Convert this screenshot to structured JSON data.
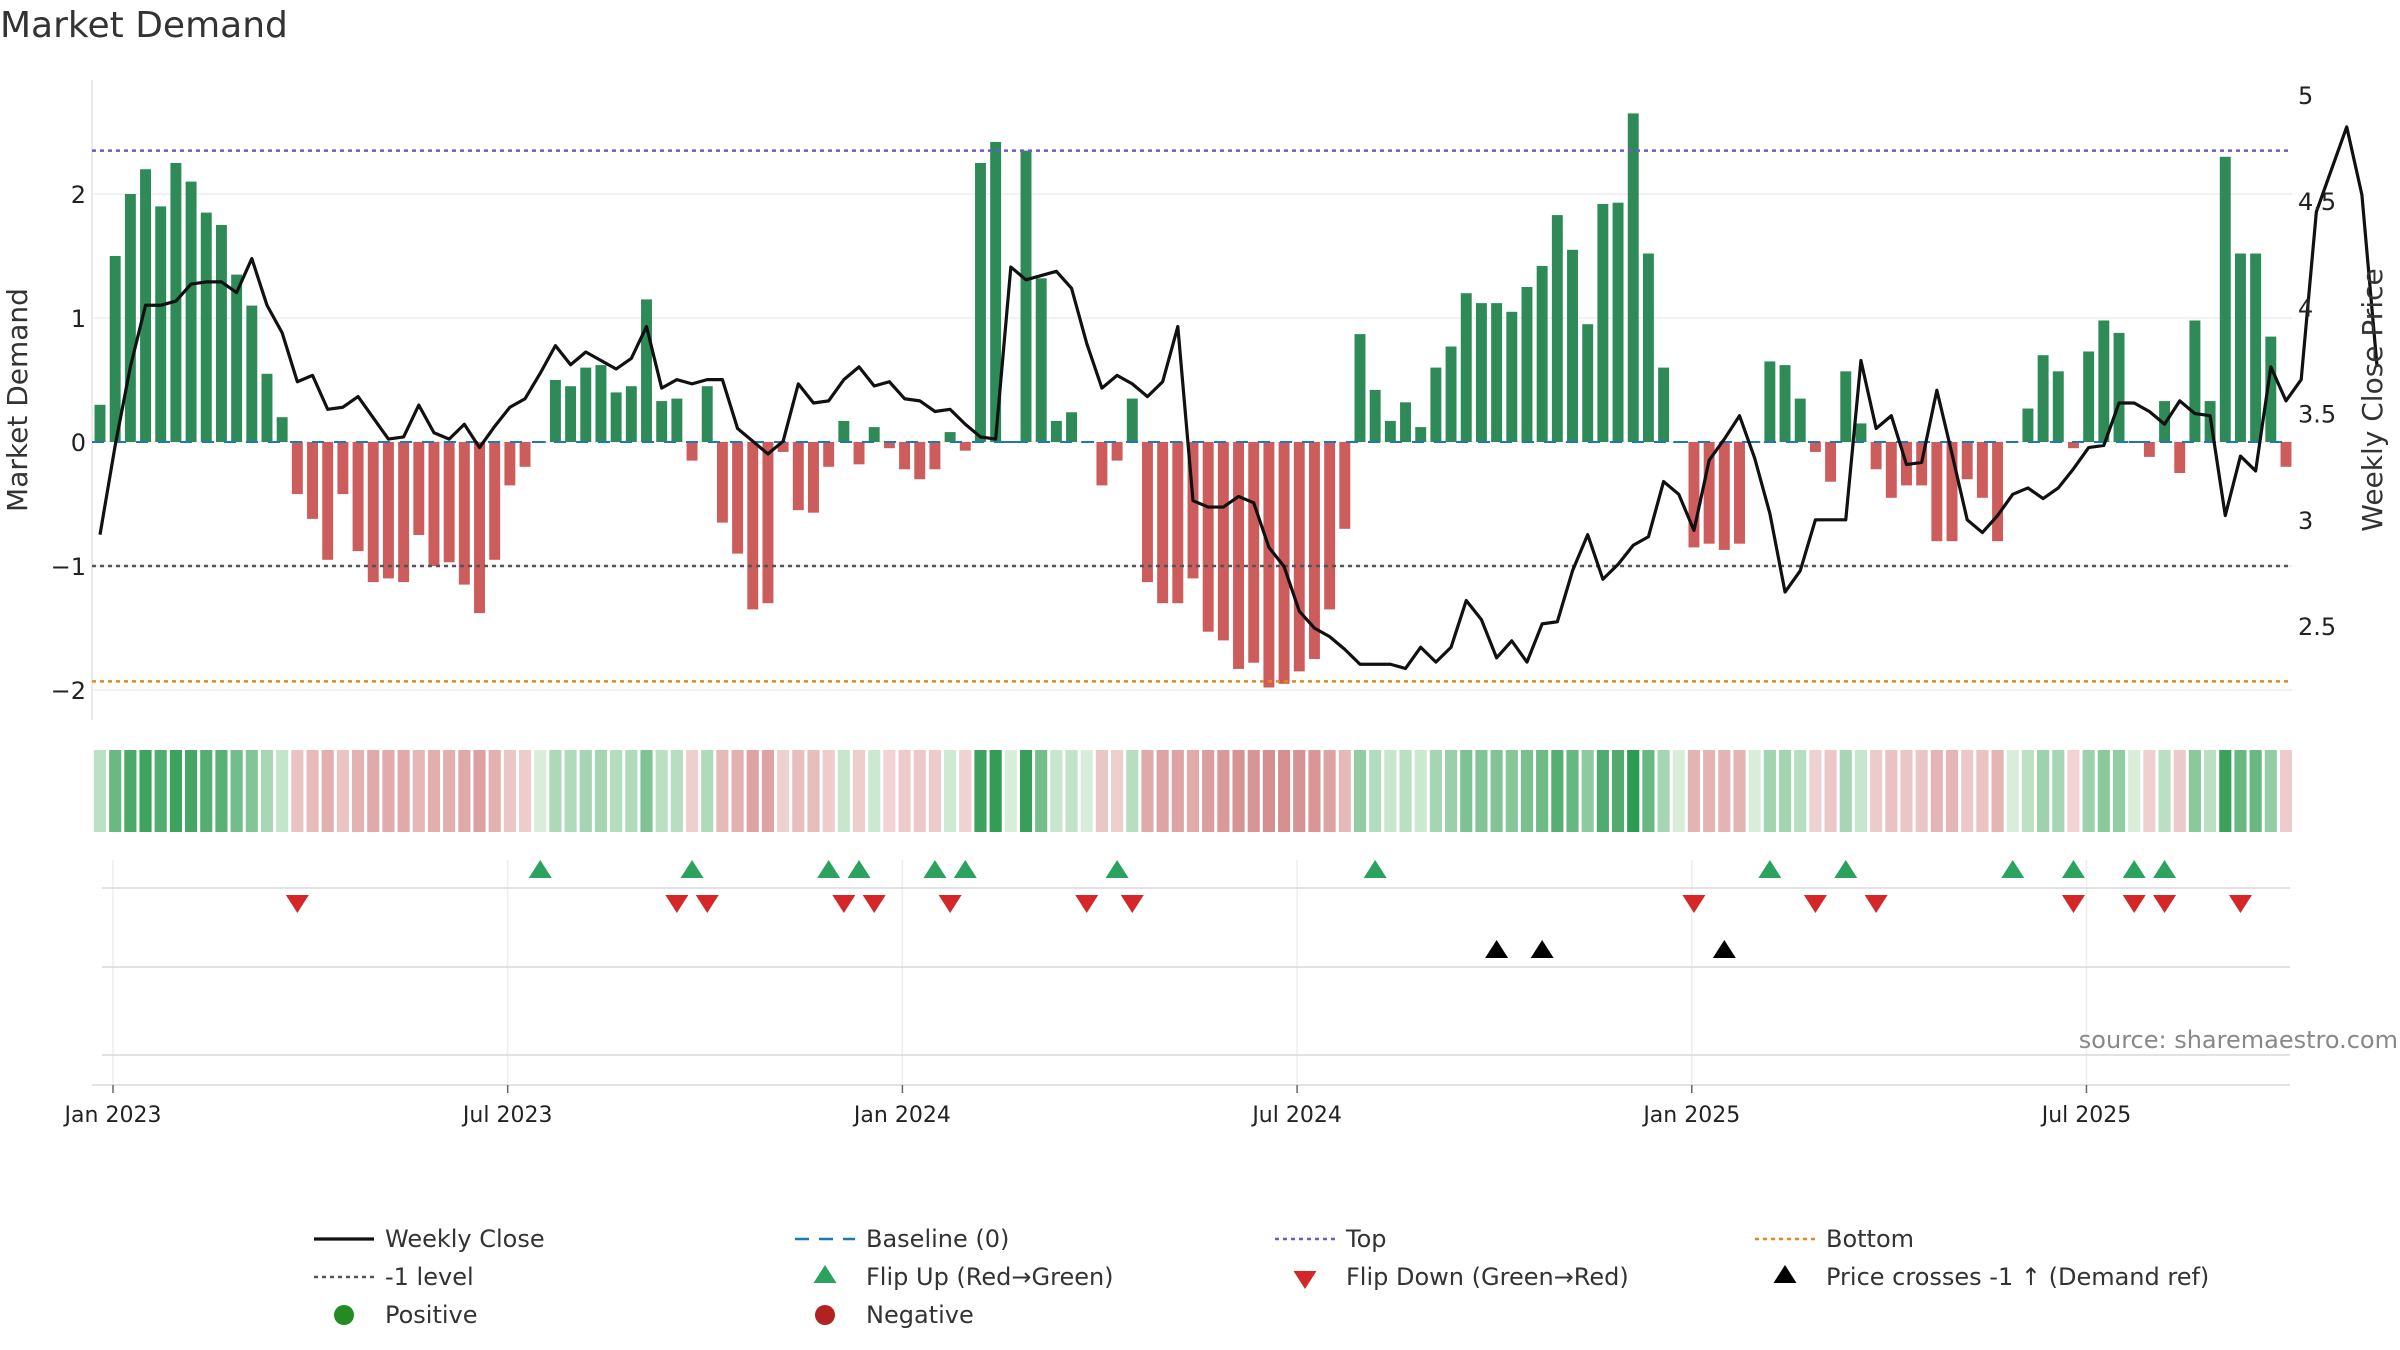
{
  "title": "Market Demand",
  "source": "source: sharemaestro.com",
  "colors": {
    "positive": "#2e8b57",
    "negative": "#cd5c5c",
    "price": "#111111",
    "baseline": "#1f77b4",
    "top": "#6a5acd",
    "minus1": "#555555",
    "bottom": "#e08a1e",
    "flip_up": "#2ca25f",
    "flip_down": "#d62728",
    "cross": "#000000",
    "legend_positive": "#228b22",
    "legend_negative": "#b22222"
  },
  "chart_data": {
    "type": "bar",
    "ylabel": "Market Demand",
    "y2label": "Weekly Close Price",
    "ylim": [
      -2.2,
      2.9
    ],
    "y2lim": [
      2.15,
      5.1
    ],
    "yticks": [
      "−2",
      "−1",
      "0",
      "1",
      "2"
    ],
    "y2ticks": [
      "2.5",
      "3",
      "3.5",
      "4",
      "4.5",
      "5"
    ],
    "xticks": [
      "Jan 2023",
      "Jul 2023",
      "Jan 2024",
      "Jul 2024",
      "Jan 2025",
      "Jul 2025"
    ],
    "reference_lines": {
      "top": 2.35,
      "minus1": -1,
      "bottom": -1.93,
      "baseline": 0
    },
    "demand_series": {
      "name": "Market Demand",
      "values": [
        0.3,
        1.5,
        2.0,
        2.2,
        1.9,
        2.25,
        2.1,
        1.85,
        1.75,
        1.35,
        1.1,
        0.55,
        0.2,
        -0.42,
        -0.62,
        -0.95,
        -0.42,
        -0.88,
        -1.13,
        -1.1,
        -1.13,
        -0.75,
        -1.0,
        -0.97,
        -1.15,
        -1.38,
        -0.95,
        -0.35,
        -0.2,
        0.0,
        0.5,
        0.45,
        0.6,
        0.62,
        0.4,
        0.45,
        1.15,
        0.33,
        0.35,
        -0.15,
        0.45,
        -0.65,
        -0.9,
        -1.35,
        -1.3,
        -0.08,
        -0.55,
        -0.57,
        -0.2,
        0.17,
        -0.18,
        0.12,
        -0.05,
        -0.22,
        -0.3,
        -0.22,
        0.08,
        -0.07,
        2.25,
        2.42,
        0.0,
        2.35,
        1.32,
        0.17,
        0.24,
        0.0,
        -0.35,
        -0.15,
        0.35,
        -1.13,
        -1.3,
        -1.3,
        -1.1,
        -1.53,
        -1.6,
        -1.83,
        -1.78,
        -1.98,
        -1.95,
        -1.85,
        -1.75,
        -1.35,
        -0.7,
        0.87,
        0.42,
        0.17,
        0.32,
        0.12,
        0.6,
        0.77,
        1.2,
        1.12,
        1.12,
        1.05,
        1.25,
        1.42,
        1.83,
        1.55,
        0.95,
        1.92,
        1.93,
        2.65,
        1.52,
        0.6,
        0.0,
        -0.85,
        -0.82,
        -0.87,
        -0.82,
        0.0,
        0.65,
        0.62,
        0.35,
        -0.08,
        -0.32,
        0.57,
        0.15,
        -0.22,
        -0.45,
        -0.35,
        -0.35,
        -0.8,
        -0.8,
        -0.3,
        -0.45,
        -0.8,
        0.0,
        0.27,
        0.7,
        0.57,
        -0.05,
        0.73,
        0.98,
        0.88,
        0.0,
        -0.12,
        0.33,
        -0.25,
        0.98,
        0.33,
        2.3,
        1.52,
        1.52,
        0.85,
        -0.2
      ]
    },
    "price_series": {
      "name": "Weekly Close",
      "values": [
        2.93,
        3.35,
        3.72,
        4.01,
        4.01,
        4.03,
        4.11,
        4.12,
        4.12,
        4.07,
        4.23,
        4.01,
        3.88,
        3.65,
        3.68,
        3.52,
        3.53,
        3.58,
        3.48,
        3.38,
        3.39,
        3.54,
        3.41,
        3.38,
        3.45,
        3.34,
        3.44,
        3.53,
        3.57,
        3.69,
        3.82,
        3.73,
        3.79,
        3.75,
        3.71,
        3.76,
        3.91,
        3.62,
        3.66,
        3.64,
        3.66,
        3.66,
        3.43,
        3.37,
        3.31,
        3.37,
        3.64,
        3.55,
        3.56,
        3.66,
        3.72,
        3.63,
        3.65,
        3.57,
        3.56,
        3.51,
        3.52,
        3.45,
        3.39,
        3.38,
        4.19,
        4.13,
        4.15,
        4.17,
        4.09,
        3.83,
        3.62,
        3.68,
        3.64,
        3.58,
        3.65,
        3.91,
        3.09,
        3.06,
        3.06,
        3.11,
        3.08,
        2.87,
        2.78,
        2.57,
        2.49,
        2.45,
        2.39,
        2.32,
        2.32,
        2.32,
        2.3,
        2.4,
        2.33,
        2.4,
        2.62,
        2.53,
        2.35,
        2.43,
        2.33,
        2.51,
        2.52,
        2.76,
        2.93,
        2.72,
        2.79,
        2.88,
        2.92,
        3.18,
        3.12,
        2.95,
        3.28,
        3.38,
        3.49,
        3.29,
        3.03,
        2.66,
        2.76,
        3.0,
        3.0,
        3.0,
        3.75,
        3.43,
        3.49,
        3.26,
        3.27,
        3.61,
        3.31,
        3.0,
        2.94,
        3.02,
        3.12,
        3.15,
        3.1,
        3.15,
        3.24,
        3.34,
        3.35,
        3.55,
        3.55,
        3.51,
        3.45,
        3.56,
        3.5,
        3.49,
        3.02,
        3.3,
        3.23,
        3.72,
        3.56,
        3.66,
        4.45,
        4.65,
        4.85,
        4.53,
        3.72
      ]
    },
    "flip_up_weeks": [
      29,
      39,
      48,
      50,
      55,
      57,
      67,
      84,
      110,
      115,
      126,
      130,
      134,
      136
    ],
    "flip_down_weeks": [
      13,
      38,
      40,
      49,
      51,
      56,
      65,
      68,
      105,
      113,
      117,
      130,
      134,
      136,
      141
    ],
    "price_cross_weeks": [
      92,
      95,
      107
    ],
    "legend": [
      {
        "label": "Weekly Close",
        "type": "solid-line",
        "color": "#111111"
      },
      {
        "label": "Baseline (0)",
        "type": "dashed-line",
        "color": "#1f77b4"
      },
      {
        "label": "Top",
        "type": "dotted-line",
        "color": "#6a5acd"
      },
      {
        "label": "Bottom",
        "type": "dotted-line",
        "color": "#e08a1e"
      },
      {
        "label": "-1 level",
        "type": "dotted-line",
        "color": "#555555"
      },
      {
        "label": "Flip Up (Red→Green)",
        "type": "up-triangle",
        "color": "#2ca25f"
      },
      {
        "label": "Flip Down (Green→Red)",
        "type": "down-triangle",
        "color": "#d62728"
      },
      {
        "label": "Price crosses -1 ↑ (Demand ref)",
        "type": "up-triangle",
        "color": "#000000"
      },
      {
        "label": "Positive",
        "type": "dot",
        "color": "#228b22"
      },
      {
        "label": "Negative",
        "type": "dot",
        "color": "#b22222"
      }
    ]
  }
}
